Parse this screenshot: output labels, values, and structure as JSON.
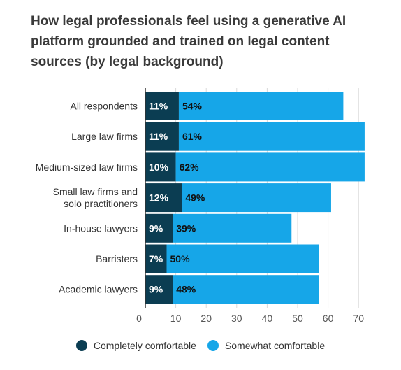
{
  "chart_data": {
    "type": "bar",
    "orientation": "horizontal",
    "stacked": true,
    "title": "How legal professionals feel using a generative AI platform grounded and trained on legal content sources (by legal background)",
    "categories": [
      [
        "All respondents"
      ],
      [
        "Large law firms"
      ],
      [
        "Medium-sized law firms"
      ],
      [
        "Small law firms and",
        "solo practitioners"
      ],
      [
        "In-house lawyers"
      ],
      [
        "Barristers"
      ],
      [
        "Academic lawyers"
      ]
    ],
    "series": [
      {
        "name": "Completely comfortable",
        "color": "#0b3d52",
        "values": [
          11,
          11,
          10,
          12,
          9,
          7,
          9
        ],
        "labels": [
          "11%",
          "11%",
          "10%",
          "12%",
          "9%",
          "7%",
          "9%"
        ]
      },
      {
        "name": "Somewhat comfortable",
        "color": "#16a6e8",
        "values": [
          54,
          61,
          62,
          49,
          39,
          50,
          48
        ],
        "labels": [
          "54%",
          "61%",
          "62%",
          "49%",
          "39%",
          "50%",
          "48%"
        ]
      }
    ],
    "xlim": [
      0,
      72
    ],
    "xticks": [
      0,
      10,
      20,
      30,
      40,
      50,
      60,
      70
    ],
    "grid": true,
    "legend_position": "bottom"
  }
}
